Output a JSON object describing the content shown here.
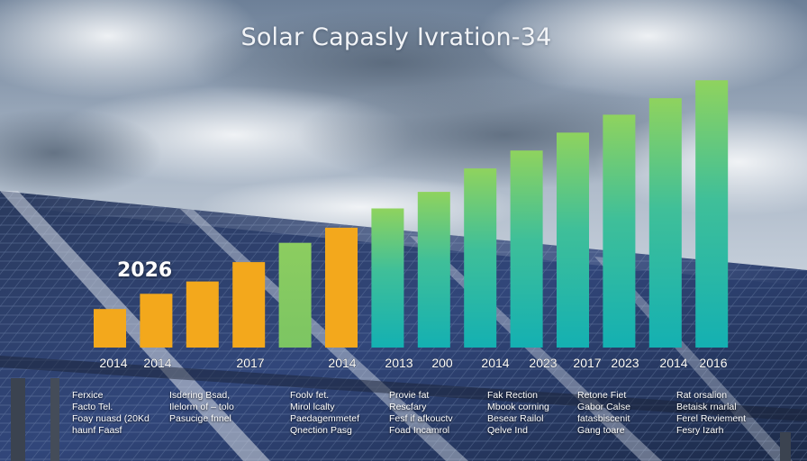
{
  "title": "Solar Capasly Ivration-34",
  "callout_year": "2026",
  "chart_data": {
    "type": "bar",
    "title": "Solar Capasly Ivration-34",
    "categories": [
      "2014",
      "2014",
      "",
      "2017",
      "",
      "2014",
      "2013",
      "200",
      "2014",
      "2023",
      "2017",
      "2023",
      "2014",
      "2016"
    ],
    "values": [
      14,
      19.5,
      24,
      31,
      38,
      43.5,
      50.5,
      56.5,
      65,
      71.5,
      78,
      84.5,
      90.5,
      97
    ],
    "colors": [
      "#f3a81c",
      "#f3a81c",
      "#f3a81c",
      "#f3a81c",
      "#8fcd62",
      "#f3a81c",
      "#8fcd62",
      "#8fcd62",
      "#8fcd62",
      "#8fcd62",
      "#8fcd62",
      "#8fcd62",
      "#8fcd62",
      "#8fcd62"
    ],
    "xlabel": "",
    "ylabel": "",
    "ylim": [
      0,
      100
    ],
    "grid": false,
    "legend": "none"
  },
  "notes": [
    {
      "lines": [
        "Ferxice",
        "Facto Tel.",
        "Foay nuasd (20Kd",
        "haunf Faasf"
      ]
    },
    {
      "lines": [
        "Isdering Bsad,",
        "Ilelorm of – tolo",
        "Pasucige fnnel"
      ]
    },
    {
      "lines": [
        "Foolv fet.",
        "Mirol lcalty",
        "Paedagemmetef",
        "Qnection Pasg"
      ]
    },
    {
      "lines": [
        "Provie fat",
        "Rescfary",
        "Fesf if afkouctv",
        "Foad Incamrol"
      ]
    },
    {
      "lines": [
        "Fak Rection",
        "Mbook corning",
        "Besear Railol",
        "Qelve Ind"
      ]
    },
    {
      "lines": [
        "Retone Fiet",
        "Gabor Calse",
        "fatasbiscenit",
        "Gang toare"
      ]
    },
    {
      "lines": [
        "Rat orsalion",
        "Betaisk rnarlal",
        "Ferel Reviement",
        "Fesry Izarh"
      ]
    }
  ]
}
